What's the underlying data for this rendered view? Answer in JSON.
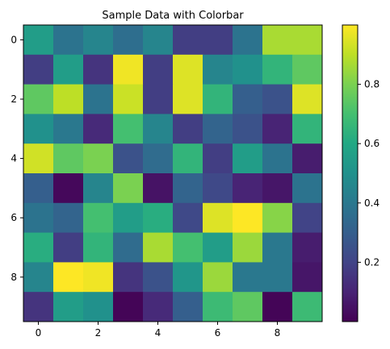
{
  "chart_data": {
    "type": "heatmap",
    "title": "Sample Data with Colorbar",
    "xlabel": "",
    "ylabel": "",
    "rows": 10,
    "cols": 10,
    "x_ticks": [
      "0",
      "2",
      "4",
      "6",
      "8"
    ],
    "y_ticks": [
      "0",
      "2",
      "4",
      "6",
      "8"
    ],
    "colorbar_ticks": [
      "0.2",
      "0.4",
      "0.6",
      "0.8"
    ],
    "colorbar_range": [
      0.0,
      1.0
    ],
    "colormap": "viridis",
    "values": [
      [
        0.55,
        0.38,
        0.45,
        0.36,
        0.45,
        0.18,
        0.18,
        0.38,
        0.87,
        0.87
      ],
      [
        0.18,
        0.55,
        0.15,
        0.98,
        0.18,
        0.95,
        0.45,
        0.5,
        0.65,
        0.75
      ],
      [
        0.75,
        0.9,
        0.38,
        0.92,
        0.18,
        0.95,
        0.65,
        0.3,
        0.25,
        0.95
      ],
      [
        0.5,
        0.4,
        0.12,
        0.7,
        0.45,
        0.18,
        0.32,
        0.25,
        0.1,
        0.65
      ],
      [
        0.93,
        0.75,
        0.8,
        0.25,
        0.35,
        0.65,
        0.18,
        0.55,
        0.38,
        0.08
      ],
      [
        0.3,
        0.02,
        0.45,
        0.8,
        0.05,
        0.32,
        0.22,
        0.1,
        0.06,
        0.38
      ],
      [
        0.38,
        0.32,
        0.7,
        0.55,
        0.62,
        0.22,
        0.95,
        1.0,
        0.82,
        0.2
      ],
      [
        0.62,
        0.18,
        0.65,
        0.35,
        0.87,
        0.7,
        0.55,
        0.85,
        0.4,
        0.08
      ],
      [
        0.45,
        1.0,
        0.98,
        0.15,
        0.25,
        0.52,
        0.85,
        0.4,
        0.4,
        0.06
      ],
      [
        0.15,
        0.55,
        0.5,
        0.01,
        0.12,
        0.3,
        0.68,
        0.75,
        0.01,
        0.68
      ]
    ]
  }
}
